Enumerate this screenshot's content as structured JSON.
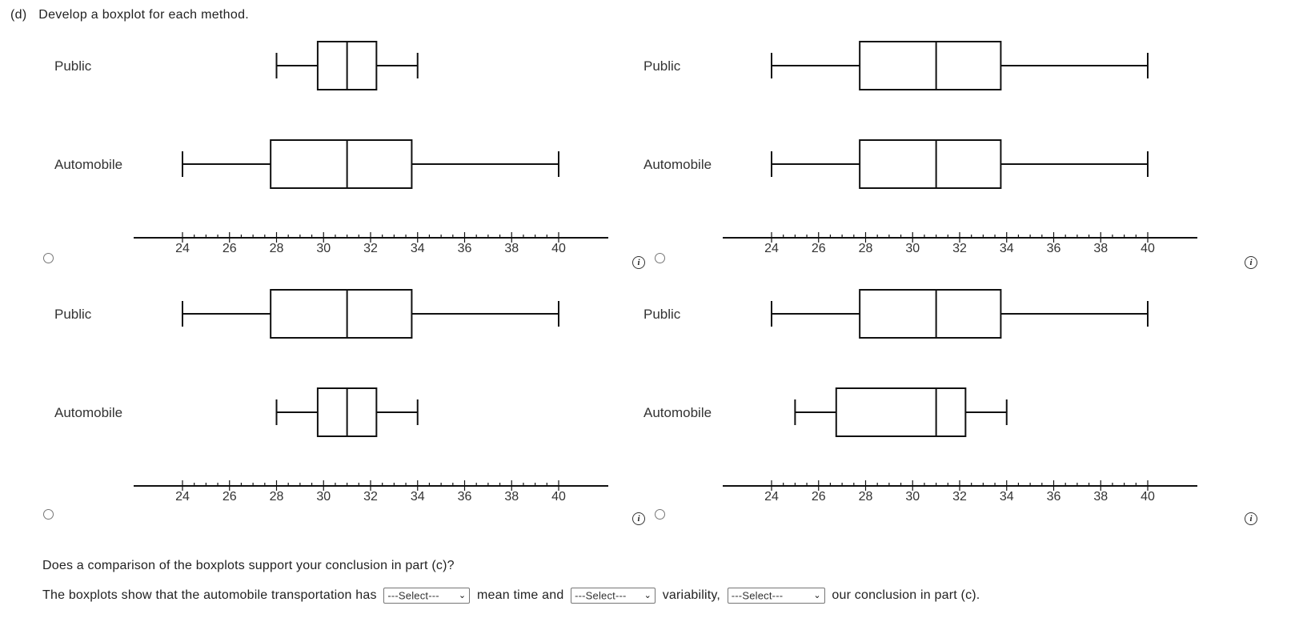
{
  "question": {
    "part": "(d)",
    "text": "Develop a boxplot for each method."
  },
  "axis": {
    "min": 24,
    "max": 40,
    "major_step": 2,
    "minor_step": 0.5,
    "tick_labels": [
      "24",
      "26",
      "28",
      "30",
      "32",
      "34",
      "36",
      "38",
      "40"
    ]
  },
  "options": [
    {
      "id": "A",
      "rows": [
        {
          "label": "Public",
          "min": 28,
          "q1": 29.75,
          "median": 31,
          "q3": 32.25,
          "max": 34
        },
        {
          "label": "Automobile",
          "min": 24,
          "q1": 27.75,
          "median": 31,
          "q3": 33.75,
          "max": 40
        }
      ]
    },
    {
      "id": "B",
      "rows": [
        {
          "label": "Public",
          "min": 24,
          "q1": 27.75,
          "median": 31,
          "q3": 33.75,
          "max": 40
        },
        {
          "label": "Automobile",
          "min": 24,
          "q1": 27.75,
          "median": 31,
          "q3": 33.75,
          "max": 40
        }
      ]
    },
    {
      "id": "C",
      "rows": [
        {
          "label": "Public",
          "min": 24,
          "q1": 27.75,
          "median": 31,
          "q3": 33.75,
          "max": 40
        },
        {
          "label": "Automobile",
          "min": 28,
          "q1": 29.75,
          "median": 31,
          "q3": 32.25,
          "max": 34
        }
      ]
    },
    {
      "id": "D",
      "rows": [
        {
          "label": "Public",
          "min": 24,
          "q1": 27.75,
          "median": 31,
          "q3": 33.75,
          "max": 40
        },
        {
          "label": "Automobile",
          "min": 25,
          "q1": 26.75,
          "median": 31,
          "q3": 32.25,
          "max": 34
        }
      ]
    }
  ],
  "info_glyph": "i",
  "footer": {
    "question": "Does a comparison of the boxplots support your conclusion in part (c)?",
    "sentence_1": "The boxplots show that the automobile transportation has",
    "select_1": "---Select---",
    "sentence_2": "mean time and",
    "select_2": "---Select---",
    "sentence_3": "variability,",
    "select_3": "---Select---",
    "sentence_4": "our conclusion in part (c)."
  },
  "chart_data": [
    {
      "type": "boxplot",
      "series": [
        {
          "name": "Public",
          "values": {
            "min": 28,
            "q1": 29.75,
            "median": 31,
            "q3": 32.25,
            "max": 34
          }
        },
        {
          "name": "Automobile",
          "values": {
            "min": 24,
            "q1": 27.75,
            "median": 31,
            "q3": 33.75,
            "max": 40
          }
        }
      ],
      "xlim": [
        24,
        40
      ]
    },
    {
      "type": "boxplot",
      "series": [
        {
          "name": "Public",
          "values": {
            "min": 24,
            "q1": 27.75,
            "median": 31,
            "q3": 33.75,
            "max": 40
          }
        },
        {
          "name": "Automobile",
          "values": {
            "min": 24,
            "q1": 27.75,
            "median": 31,
            "q3": 33.75,
            "max": 40
          }
        }
      ],
      "xlim": [
        24,
        40
      ]
    },
    {
      "type": "boxplot",
      "series": [
        {
          "name": "Public",
          "values": {
            "min": 24,
            "q1": 27.75,
            "median": 31,
            "q3": 33.75,
            "max": 40
          }
        },
        {
          "name": "Automobile",
          "values": {
            "min": 28,
            "q1": 29.75,
            "median": 31,
            "q3": 32.25,
            "max": 34
          }
        }
      ],
      "xlim": [
        24,
        40
      ]
    },
    {
      "type": "boxplot",
      "series": [
        {
          "name": "Public",
          "values": {
            "min": 24,
            "q1": 27.75,
            "median": 31,
            "q3": 33.75,
            "max": 40
          }
        },
        {
          "name": "Automobile",
          "values": {
            "min": 25,
            "q1": 26.75,
            "median": 31,
            "q3": 32.25,
            "max": 34
          }
        }
      ],
      "xlim": [
        24,
        40
      ]
    }
  ]
}
